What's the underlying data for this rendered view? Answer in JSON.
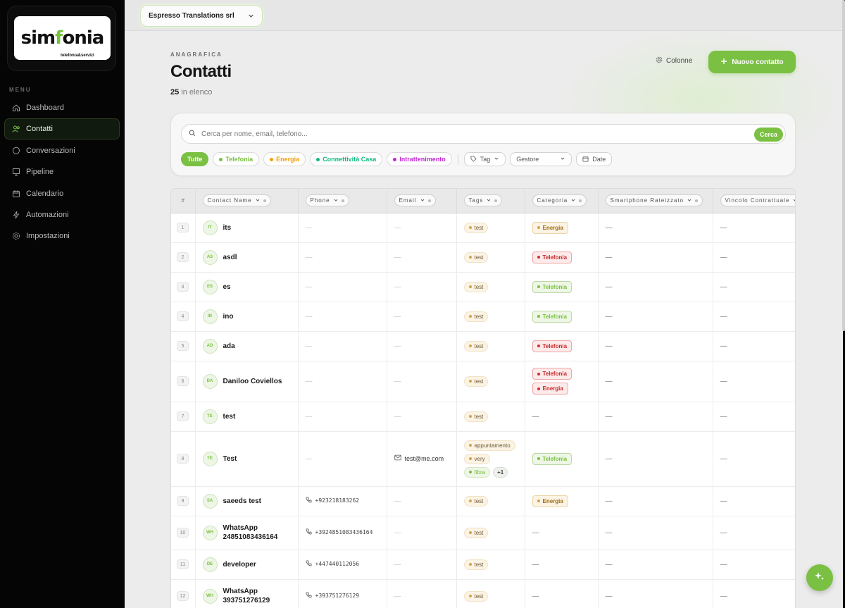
{
  "brand": {
    "logo_main": "simfonia",
    "logo_sub": "telefonia&servizi"
  },
  "sidebar": {
    "menu_label": "MENU",
    "items": [
      {
        "label": "Dashboard",
        "icon": "home-icon",
        "active": false
      },
      {
        "label": "Contatti",
        "icon": "users-icon",
        "active": true
      },
      {
        "label": "Conversazioni",
        "icon": "chat-icon",
        "active": false
      },
      {
        "label": "Pipeline",
        "icon": "pipeline-icon",
        "active": false
      },
      {
        "label": "Calendario",
        "icon": "calendar-icon",
        "active": false
      },
      {
        "label": "Automazioni",
        "icon": "bolt-icon",
        "active": false
      },
      {
        "label": "Impostazioni",
        "icon": "gear-icon",
        "active": false
      }
    ]
  },
  "topbar": {
    "organization": "Espresso Translations srl"
  },
  "header": {
    "eyebrow": "ANAGRAFICA",
    "title": "Contatti",
    "count": "25",
    "count_suffix": "in elenco",
    "columns_label": "Colonne",
    "new_contact_label": "Nuovo contatto"
  },
  "filters": {
    "search_placeholder": "Cerca per nome, email, telefono...",
    "search_button": "Cerca",
    "chips": [
      {
        "label": "Tutte",
        "color": "#7ac043",
        "active": true
      },
      {
        "label": "Telefonia",
        "color": "#7ac043",
        "active": false
      },
      {
        "label": "Energia",
        "color": "#f59e0b",
        "active": false
      },
      {
        "label": "Connettività Casa",
        "color": "#10b981",
        "active": false
      },
      {
        "label": "Intrattenimento",
        "color": "#c026d3",
        "active": false
      }
    ],
    "tag_label": "Tag",
    "manager_label": "Gestore",
    "date_label": "Date"
  },
  "table": {
    "columns": {
      "index": "#",
      "name": "Contact Name",
      "phone": "Phone",
      "email": "Email",
      "tags": "Tags",
      "category": "Categoria",
      "smartphone": "Smartphone Rateizzato",
      "vincolo": "Vincolo Contrattuale"
    },
    "empty": "—",
    "rows": [
      {
        "n": "1",
        "initials": "IT",
        "name": "its",
        "phone": "",
        "email": "",
        "tags": [
          "test"
        ],
        "categories": [
          {
            "label": "Energia",
            "style": "energia"
          }
        ],
        "h": 42
      },
      {
        "n": "2",
        "initials": "AS",
        "name": "asdl",
        "phone": "",
        "email": "",
        "tags": [
          "test"
        ],
        "categories": [
          {
            "label": "Telefonia",
            "style": "telefonia-red"
          }
        ],
        "h": 42
      },
      {
        "n": "3",
        "initials": "ES",
        "name": "es",
        "phone": "",
        "email": "",
        "tags": [
          "test"
        ],
        "categories": [
          {
            "label": "Telefonia",
            "style": "telefonia-green"
          }
        ],
        "h": 42
      },
      {
        "n": "4",
        "initials": "IN",
        "name": "ino",
        "phone": "",
        "email": "",
        "tags": [
          "test"
        ],
        "categories": [
          {
            "label": "Telefonia",
            "style": "telefonia-green"
          }
        ],
        "h": 42
      },
      {
        "n": "5",
        "initials": "AD",
        "name": "ada",
        "phone": "",
        "email": "",
        "tags": [
          "test"
        ],
        "categories": [
          {
            "label": "Telefonia",
            "style": "telefonia-red"
          }
        ],
        "h": 42
      },
      {
        "n": "6",
        "initials": "DA",
        "name": "Daniloo Coviellos",
        "phone": "",
        "email": "",
        "tags": [
          "test"
        ],
        "categories": [
          {
            "label": "Telefonia",
            "style": "telefonia-red"
          },
          {
            "label": "Energia",
            "style": "telefonia-red"
          }
        ],
        "h": 58
      },
      {
        "n": "7",
        "initials": "TE",
        "name": "test",
        "phone": "",
        "email": "",
        "tags": [
          "test"
        ],
        "categories": [],
        "h": 42
      },
      {
        "n": "8",
        "initials": "TE",
        "name": "Test",
        "phone": "",
        "email": "test@me.com",
        "tags": [
          "appuntamento",
          "very",
          "fibra",
          "+1"
        ],
        "categories": [
          {
            "label": "Telefonia",
            "style": "telefonia-green"
          }
        ],
        "h": 78
      },
      {
        "n": "9",
        "initials": "SA",
        "name": "saeeds test",
        "phone": "+923218183262",
        "email": "",
        "tags": [
          "test"
        ],
        "categories": [
          {
            "label": "Energia",
            "style": "energia"
          }
        ],
        "h": 42
      },
      {
        "n": "10",
        "initials": "WH",
        "name": "WhatsApp 24851083436164",
        "phone": "+3924851083436164",
        "email": "",
        "tags": [
          "test"
        ],
        "categories": [],
        "h": 48
      },
      {
        "n": "11",
        "initials": "DE",
        "name": "developer",
        "phone": "+447440112056",
        "email": "",
        "tags": [
          "test"
        ],
        "categories": [],
        "h": 42
      },
      {
        "n": "12",
        "initials": "WH",
        "name": "WhatsApp 393751276129",
        "phone": "+393751276129",
        "email": "",
        "tags": [
          "test"
        ],
        "categories": [],
        "h": 48
      }
    ]
  },
  "colors": {
    "accent": "#7ac043",
    "sidebar_bg": "#050505",
    "main_bg": "#ececec"
  }
}
